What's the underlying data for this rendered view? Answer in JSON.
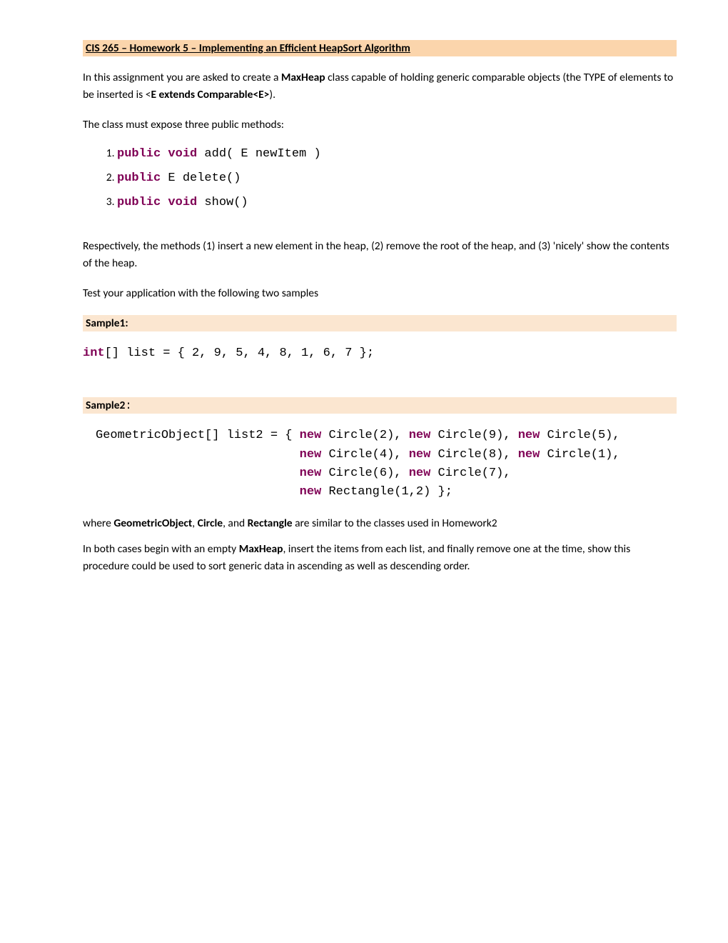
{
  "title": "CIS 265 – Homework 5 – Implementing an Efficient HeapSort Algorithm",
  "intro_1a": "In this assignment you are asked to create a ",
  "intro_1b": "MaxHeap",
  "intro_1c": " class capable of holding generic comparable objects (the TYPE of elements to be inserted is <",
  "intro_1d": "E extends Comparable<E>",
  "intro_1e": ").",
  "intro_2": "The class must expose three public methods:",
  "methods": [
    {
      "kw": "public void",
      "rest": "  add( E newItem )"
    },
    {
      "kw": "public",
      "rest": " E delete()"
    },
    {
      "kw": "public void",
      "rest": " show()"
    }
  ],
  "intro_3": "Respectively, the methods (1) insert a new element in the heap, (2) remove the root of the heap, and (3) 'nicely' show the contents of the heap.",
  "intro_4": "Test your application with the following two samples",
  "sample1_label": "Sample1:",
  "sample1_code_kw": "int",
  "sample1_code_rest": "[] list = { 2, 9, 5, 4, 8, 1, 6, 7 };",
  "sample2_label": "Sample2",
  "sample2_colon": ":",
  "sample2_code": {
    "l1a": "GeometricObject[] list2 = { ",
    "kw": "new",
    "c2": " Circle(2), ",
    "c9": " Circle(9), ",
    "c5": " Circle(5),",
    "indent": "                            ",
    "c4": " Circle(4), ",
    "c8": " Circle(8), ",
    "c1": " Circle(1),",
    "c6": " Circle(6), ",
    "c7": " Circle(7),",
    "r12": " Rectangle(1,2) };"
  },
  "where_a": "where ",
  "where_b": "GeometricObject",
  "where_c": ", ",
  "where_d": "Circle",
  "where_e": ", and ",
  "where_f": "Rectangle",
  "where_g": " are similar to the classes used in Homework2",
  "final_a": "In both cases begin with an empty ",
  "final_b": "MaxHeap",
  "final_c": ", insert the items from each list, and finally remove one at the time, show this procedure could be used to sort generic data in ascending as well as descending order."
}
